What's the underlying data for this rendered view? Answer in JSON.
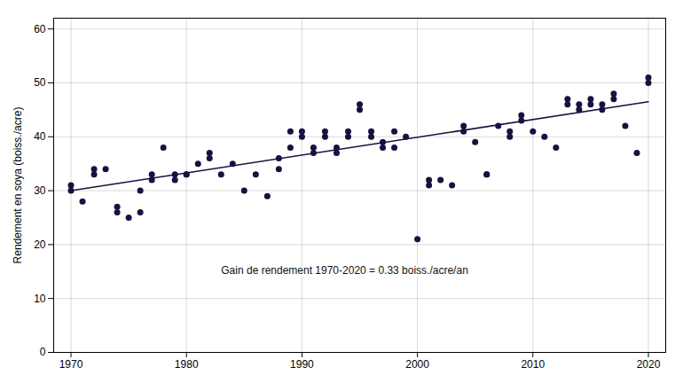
{
  "chart_data": {
    "type": "scatter",
    "ylabel": "Rendement en soya (boiss./acre)",
    "xlim": [
      1968.5,
      2021.5
    ],
    "ylim": [
      0,
      62
    ],
    "xticks": [
      1970,
      1980,
      1990,
      2000,
      2010,
      2020
    ],
    "yticks": [
      0,
      10,
      20,
      30,
      40,
      50,
      60
    ],
    "grid": true,
    "annotations": [
      {
        "text": "Gain de rendement 1970-2020 = 0.33 boiss./acre/an",
        "x": 1983,
        "y": 14.5
      }
    ],
    "series": [
      {
        "type": "scatter",
        "color": "#1a1040",
        "x": [
          1970,
          1970,
          1971,
          1972,
          1972,
          1973,
          1974,
          1974,
          1975,
          1976,
          1976,
          1977,
          1977,
          1978,
          1979,
          1979,
          1980,
          1980,
          1981,
          1982,
          1982,
          1983,
          1984,
          1985,
          1986,
          1987,
          1988,
          1988,
          1989,
          1989,
          1990,
          1990,
          1991,
          1991,
          1992,
          1992,
          1993,
          1993,
          1994,
          1994,
          1995,
          1995,
          1996,
          1996,
          1997,
          1997,
          1998,
          1998,
          1999,
          2000,
          2001,
          2001,
          2002,
          2003,
          2004,
          2004,
          2005,
          2006,
          2006,
          2007,
          2008,
          2008,
          2009,
          2009,
          2010,
          2011,
          2012,
          2013,
          2013,
          2014,
          2014,
          2015,
          2015,
          2016,
          2016,
          2017,
          2017,
          2018,
          2019,
          2020,
          2020
        ],
        "values": [
          31,
          30,
          28,
          34,
          33,
          34,
          27,
          26,
          25,
          30,
          26,
          32,
          33,
          38,
          33,
          32,
          33,
          33,
          35,
          36,
          37,
          33,
          35,
          30,
          33,
          29,
          34,
          36,
          41,
          38,
          41,
          40,
          38,
          37,
          40,
          41,
          37,
          38,
          40,
          41,
          45,
          46,
          40,
          41,
          38,
          39,
          38,
          41,
          40,
          21,
          32,
          31,
          32,
          31,
          42,
          41,
          39,
          33,
          33,
          42,
          40,
          41,
          43,
          44,
          41,
          40,
          38,
          46,
          47,
          45,
          46,
          46,
          47,
          45,
          46,
          48,
          47,
          42,
          37,
          51,
          50
        ]
      },
      {
        "type": "line",
        "color": "#1a1040",
        "x": [
          1970,
          2020
        ],
        "values": [
          30.0,
          46.5
        ]
      }
    ]
  }
}
